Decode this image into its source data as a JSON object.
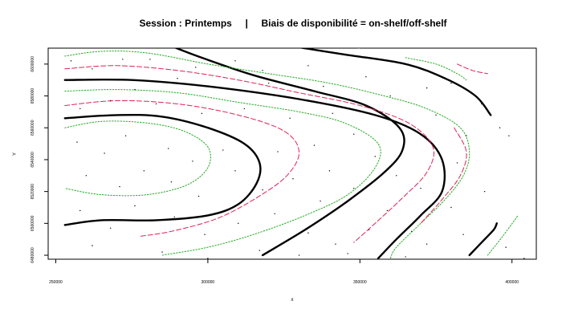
{
  "chart_data": {
    "type": "contour",
    "title": "Session : Printemps     |     Biais de disponibilité = on-shelf/off-shelf",
    "xlabel": "x",
    "ylabel": "Y",
    "xlim": [
      247500,
      408000
    ],
    "ylim": [
      6477500,
      6610000
    ],
    "x_ticks": [
      250000,
      300000,
      350000,
      400000
    ],
    "x_tick_labels": [
      "250000",
      "300000",
      "350000",
      "400000"
    ],
    "y_ticks": [
      6480000,
      6500000,
      6520000,
      6540000,
      6560000,
      6580000,
      6600000
    ],
    "y_tick_labels": [
      "6480000",
      "6500000",
      "6520000",
      "6540000",
      "6560000",
      "6580000",
      "6600000"
    ],
    "colors": {
      "main": "#000000",
      "band": "#22aa22",
      "alt": "#dd2255"
    },
    "series": [
      {
        "style": "main",
        "points": [
          [
            253000,
            6590000
          ],
          [
            275000,
            6590000
          ],
          [
            300000,
            6586000
          ],
          [
            330000,
            6578000
          ],
          [
            355000,
            6568000
          ],
          [
            370000,
            6556000
          ],
          [
            377000,
            6540000
          ],
          [
            377000,
            6520000
          ],
          [
            370000,
            6505000
          ],
          [
            362000,
            6490000
          ],
          [
            356000,
            6478000
          ]
        ]
      },
      {
        "style": "main",
        "points": [
          [
            253000,
            6566000
          ],
          [
            270000,
            6568000
          ],
          [
            285000,
            6567000
          ],
          [
            300000,
            6560000
          ],
          [
            312000,
            6550000
          ],
          [
            317000,
            6538000
          ],
          [
            316000,
            6525000
          ],
          [
            310000,
            6512000
          ],
          [
            300000,
            6505000
          ],
          [
            283000,
            6502000
          ],
          [
            265000,
            6502000
          ],
          [
            253000,
            6499000
          ]
        ]
      },
      {
        "style": "main",
        "points": [
          [
            287000,
            6612000
          ],
          [
            298000,
            6604000
          ],
          [
            315000,
            6593000
          ],
          [
            335000,
            6583000
          ],
          [
            352000,
            6574000
          ],
          [
            363000,
            6560000
          ],
          [
            364000,
            6546000
          ],
          [
            358000,
            6532000
          ],
          [
            346000,
            6514000
          ],
          [
            332000,
            6496000
          ],
          [
            318000,
            6480000
          ]
        ]
      },
      {
        "style": "main",
        "points": [
          [
            325000,
            6612000
          ],
          [
            345000,
            6606000
          ],
          [
            365000,
            6600000
          ],
          [
            378000,
            6591000
          ],
          [
            388000,
            6580000
          ],
          [
            393000,
            6568000
          ]
        ]
      },
      {
        "style": "main",
        "points": [
          [
            386000,
            6480000
          ],
          [
            390000,
            6488000
          ],
          [
            394000,
            6496000
          ],
          [
            395000,
            6500000
          ]
        ]
      },
      {
        "style": "band",
        "points": [
          [
            253000,
            6605000
          ],
          [
            265000,
            6608000
          ],
          [
            280000,
            6607000
          ],
          [
            300000,
            6600000
          ],
          [
            320000,
            6594000
          ],
          [
            340000,
            6588000
          ],
          [
            358000,
            6580000
          ],
          [
            372000,
            6572000
          ],
          [
            383000,
            6560000
          ],
          [
            386000,
            6545000
          ],
          [
            384000,
            6530000
          ],
          [
            378000,
            6515000
          ],
          [
            370000,
            6500000
          ],
          [
            362000,
            6485000
          ],
          [
            360000,
            6478000
          ]
        ]
      },
      {
        "style": "band",
        "points": [
          [
            253000,
            6583000
          ],
          [
            270000,
            6584000
          ],
          [
            290000,
            6582000
          ],
          [
            310000,
            6576000
          ],
          [
            330000,
            6570000
          ],
          [
            345000,
            6563000
          ],
          [
            356000,
            6550000
          ],
          [
            355000,
            6535000
          ],
          [
            346000,
            6518000
          ],
          [
            332000,
            6505000
          ],
          [
            315000,
            6493000
          ],
          [
            300000,
            6485000
          ],
          [
            285000,
            6480000
          ]
        ]
      },
      {
        "style": "band",
        "points": [
          [
            253000,
            6560000
          ],
          [
            265000,
            6564000
          ],
          [
            280000,
            6563000
          ],
          [
            292000,
            6558000
          ],
          [
            300000,
            6548000
          ],
          [
            300000,
            6535000
          ],
          [
            293000,
            6524000
          ],
          [
            280000,
            6518000
          ],
          [
            265000,
            6518000
          ],
          [
            253000,
            6522000
          ]
        ]
      },
      {
        "style": "band",
        "points": [
          [
            342000,
            6612000
          ],
          [
            350000,
            6610000
          ]
        ]
      },
      {
        "style": "band",
        "points": [
          [
            365000,
            6604000
          ],
          [
            375000,
            6600000
          ],
          [
            382000,
            6594000
          ],
          [
            385000,
            6590000
          ]
        ]
      },
      {
        "style": "band",
        "points": [
          [
            392000,
            6480000
          ],
          [
            397000,
            6492000
          ],
          [
            402000,
            6505000
          ]
        ]
      },
      {
        "style": "alt",
        "points": [
          [
            253000,
            6597000
          ],
          [
            270000,
            6599000
          ],
          [
            290000,
            6596000
          ],
          [
            310000,
            6590000
          ],
          [
            330000,
            6582000
          ],
          [
            350000,
            6574000
          ],
          [
            366000,
            6563000
          ],
          [
            374000,
            6548000
          ],
          [
            372000,
            6532000
          ],
          [
            364000,
            6516000
          ],
          [
            355000,
            6500000
          ],
          [
            348000,
            6488000
          ]
        ]
      },
      {
        "style": "alt",
        "points": [
          [
            253000,
            6574000
          ],
          [
            270000,
            6577000
          ],
          [
            290000,
            6575000
          ],
          [
            310000,
            6568000
          ],
          [
            325000,
            6558000
          ],
          [
            330000,
            6545000
          ],
          [
            326000,
            6530000
          ],
          [
            316000,
            6516000
          ],
          [
            303000,
            6503000
          ],
          [
            288000,
            6495000
          ],
          [
            278000,
            6492000
          ]
        ]
      },
      {
        "style": "alt",
        "points": [
          [
            382000,
            6600000
          ],
          [
            387000,
            6596000
          ],
          [
            392000,
            6594000
          ]
        ]
      },
      {
        "style": "alt",
        "points": [
          [
            381000,
            6560000
          ],
          [
            385000,
            6545000
          ],
          [
            383000,
            6530000
          ],
          [
            377000,
            6515000
          ],
          [
            370000,
            6500000
          ]
        ]
      }
    ],
    "scatter_points": [
      [
        272000,
        6603000
      ],
      [
        255000,
        6602000
      ],
      [
        262000,
        6597000
      ],
      [
        281000,
        6603000
      ],
      [
        296000,
        6598000
      ],
      [
        309000,
        6602000
      ],
      [
        318000,
        6596000
      ],
      [
        333000,
        6599000
      ],
      [
        290000,
        6591000
      ],
      [
        276000,
        6584000
      ],
      [
        305000,
        6585000
      ],
      [
        320000,
        6588000
      ],
      [
        338000,
        6586000
      ],
      [
        352000,
        6592000
      ],
      [
        360000,
        6580000
      ],
      [
        372000,
        6585000
      ],
      [
        380000,
        6588000
      ],
      [
        390000,
        6575000
      ],
      [
        396000,
        6560000
      ],
      [
        399000,
        6555000
      ],
      [
        258000,
        6572000
      ],
      [
        268000,
        6577000
      ],
      [
        283000,
        6575000
      ],
      [
        298000,
        6569000
      ],
      [
        312000,
        6572000
      ],
      [
        327000,
        6566000
      ],
      [
        341000,
        6569000
      ],
      [
        348000,
        6556000
      ],
      [
        362000,
        6562000
      ],
      [
        375000,
        6568000
      ],
      [
        385000,
        6555000
      ],
      [
        257000,
        6551000
      ],
      [
        266000,
        6544000
      ],
      [
        273000,
        6555000
      ],
      [
        287000,
        6547000
      ],
      [
        295000,
        6539000
      ],
      [
        305000,
        6546000
      ],
      [
        309000,
        6533000
      ],
      [
        323000,
        6545000
      ],
      [
        335000,
        6549000
      ],
      [
        340000,
        6533000
      ],
      [
        355000,
        6542000
      ],
      [
        362000,
        6530000
      ],
      [
        370000,
        6522000
      ],
      [
        382000,
        6538000
      ],
      [
        260000,
        6530000
      ],
      [
        271000,
        6523000
      ],
      [
        279000,
        6533000
      ],
      [
        288000,
        6526000
      ],
      [
        297000,
        6517000
      ],
      [
        318000,
        6521000
      ],
      [
        328000,
        6528000
      ],
      [
        337000,
        6514000
      ],
      [
        348000,
        6522000
      ],
      [
        359000,
        6508000
      ],
      [
        367000,
        6495000
      ],
      [
        380000,
        6510000
      ],
      [
        391000,
        6520000
      ],
      [
        258000,
        6508000
      ],
      [
        268000,
        6497000
      ],
      [
        276000,
        6511000
      ],
      [
        289000,
        6504000
      ],
      [
        299000,
        6493000
      ],
      [
        310000,
        6500000
      ],
      [
        322000,
        6506000
      ],
      [
        333000,
        6494000
      ],
      [
        342000,
        6487000
      ],
      [
        353000,
        6496000
      ],
      [
        372000,
        6487000
      ],
      [
        384000,
        6493000
      ],
      [
        398000,
        6485000
      ],
      [
        404000,
        6478000
      ],
      [
        317000,
        6483000
      ],
      [
        330000,
        6480000
      ],
      [
        346000,
        6481000
      ],
      [
        365000,
        6479000
      ],
      [
        388000,
        6484000
      ],
      [
        262000,
        6486000
      ],
      [
        285000,
        6482000
      ],
      [
        300000,
        6478000
      ]
    ]
  }
}
